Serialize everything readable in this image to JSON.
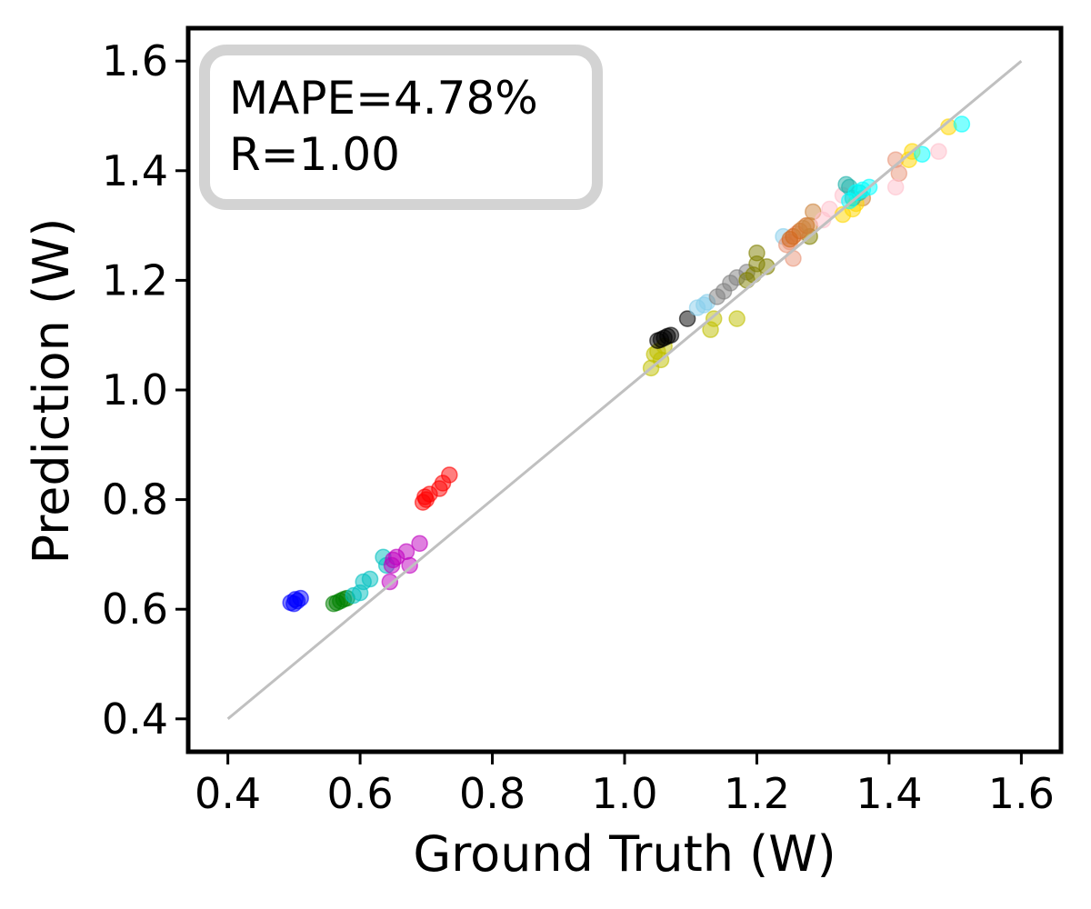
{
  "chart_data": {
    "type": "scatter",
    "title": "",
    "xlabel": "Ground Truth (W)",
    "ylabel": "Prediction (W)",
    "xlim": [
      0.34,
      1.66
    ],
    "ylim": [
      0.34,
      1.66
    ],
    "xticks": [
      "0.4",
      "0.6",
      "0.8",
      "1.0",
      "1.2",
      "1.4",
      "1.6"
    ],
    "yticks": [
      "0.4",
      "0.6",
      "0.8",
      "1.0",
      "1.2",
      "1.4",
      "1.6"
    ],
    "grid": false,
    "legend": "none",
    "annotation": {
      "lines": [
        "MAPE=4.78%",
        "R=1.00"
      ],
      "placement": "top-left"
    },
    "reference_line": {
      "from": [
        0.4,
        0.4
      ],
      "to": [
        1.6,
        1.6
      ],
      "color": "#c0c0c0"
    },
    "series": [
      {
        "color": "#0000ff",
        "points": [
          [
            0.495,
            0.612
          ],
          [
            0.5,
            0.61
          ],
          [
            0.505,
            0.615
          ],
          [
            0.51,
            0.62
          ],
          [
            0.502,
            0.618
          ]
        ]
      },
      {
        "color": "#008000",
        "points": [
          [
            0.56,
            0.61
          ],
          [
            0.565,
            0.612
          ],
          [
            0.57,
            0.615
          ],
          [
            0.58,
            0.62
          ],
          [
            0.575,
            0.618
          ]
        ]
      },
      {
        "color": "#00bfbf",
        "points": [
          [
            0.6,
            0.63
          ],
          [
            0.605,
            0.65
          ],
          [
            0.615,
            0.655
          ],
          [
            0.64,
            0.68
          ],
          [
            0.635,
            0.695
          ],
          [
            0.59,
            0.625
          ]
        ]
      },
      {
        "color": "#bf00bf",
        "points": [
          [
            0.645,
            0.65
          ],
          [
            0.648,
            0.68
          ],
          [
            0.655,
            0.695
          ],
          [
            0.67,
            0.705
          ],
          [
            0.675,
            0.68
          ],
          [
            0.69,
            0.72
          ],
          [
            0.65,
            0.69
          ]
        ]
      },
      {
        "color": "#ff0000",
        "points": [
          [
            0.695,
            0.795
          ],
          [
            0.7,
            0.8
          ],
          [
            0.705,
            0.81
          ],
          [
            0.72,
            0.82
          ],
          [
            0.725,
            0.83
          ],
          [
            0.735,
            0.845
          ],
          [
            0.698,
            0.805
          ]
        ]
      },
      {
        "color": "#bfbf00",
        "points": [
          [
            1.04,
            1.04
          ],
          [
            1.045,
            1.065
          ],
          [
            1.055,
            1.055
          ],
          [
            1.06,
            1.08
          ],
          [
            1.13,
            1.11
          ],
          [
            1.135,
            1.13
          ],
          [
            1.17,
            1.13
          ],
          [
            1.05,
            1.07
          ]
        ]
      },
      {
        "color": "#000000",
        "points": [
          [
            1.05,
            1.09
          ],
          [
            1.055,
            1.092
          ],
          [
            1.06,
            1.095
          ],
          [
            1.065,
            1.098
          ],
          [
            1.07,
            1.1
          ],
          [
            1.095,
            1.13
          ]
        ]
      },
      {
        "color": "#87ceeb",
        "points": [
          [
            1.11,
            1.15
          ],
          [
            1.12,
            1.155
          ],
          [
            1.125,
            1.16
          ],
          [
            1.24,
            1.28
          ]
        ]
      },
      {
        "color": "#808080",
        "points": [
          [
            1.14,
            1.17
          ],
          [
            1.15,
            1.18
          ],
          [
            1.16,
            1.195
          ],
          [
            1.17,
            1.205
          ],
          [
            1.185,
            1.215
          ]
        ]
      },
      {
        "color": "#808000",
        "points": [
          [
            1.185,
            1.2
          ],
          [
            1.195,
            1.21
          ],
          [
            1.2,
            1.25
          ],
          [
            1.215,
            1.225
          ],
          [
            1.2,
            1.23
          ],
          [
            1.28,
            1.28
          ]
        ]
      },
      {
        "color": "#e9967a",
        "points": [
          [
            1.245,
            1.265
          ],
          [
            1.25,
            1.27
          ],
          [
            1.255,
            1.24
          ],
          [
            1.26,
            1.285
          ],
          [
            1.41,
            1.42
          ],
          [
            1.415,
            1.395
          ]
        ]
      },
      {
        "color": "#d2691e",
        "points": [
          [
            1.25,
            1.275
          ],
          [
            1.255,
            1.28
          ],
          [
            1.265,
            1.29
          ],
          [
            1.275,
            1.3
          ]
        ]
      },
      {
        "color": "#cd853f",
        "points": [
          [
            1.27,
            1.295
          ],
          [
            1.28,
            1.3
          ],
          [
            1.285,
            1.325
          ],
          [
            1.36,
            1.35
          ]
        ]
      },
      {
        "color": "#ffc0cb",
        "points": [
          [
            1.3,
            1.31
          ],
          [
            1.31,
            1.33
          ],
          [
            1.33,
            1.355
          ],
          [
            1.41,
            1.37
          ],
          [
            1.475,
            1.435
          ]
        ]
      },
      {
        "color": "#ffd700",
        "points": [
          [
            1.33,
            1.32
          ],
          [
            1.345,
            1.33
          ],
          [
            1.35,
            1.34
          ],
          [
            1.43,
            1.42
          ],
          [
            1.435,
            1.435
          ],
          [
            1.49,
            1.48
          ]
        ]
      },
      {
        "color": "#20b2aa",
        "points": [
          [
            1.335,
            1.375
          ],
          [
            1.34,
            1.37
          ],
          [
            1.345,
            1.35
          ],
          [
            1.355,
            1.36
          ]
        ]
      },
      {
        "color": "#00ffff",
        "points": [
          [
            1.34,
            1.345
          ],
          [
            1.35,
            1.36
          ],
          [
            1.36,
            1.365
          ],
          [
            1.37,
            1.37
          ],
          [
            1.45,
            1.43
          ],
          [
            1.51,
            1.485
          ]
        ]
      }
    ]
  }
}
